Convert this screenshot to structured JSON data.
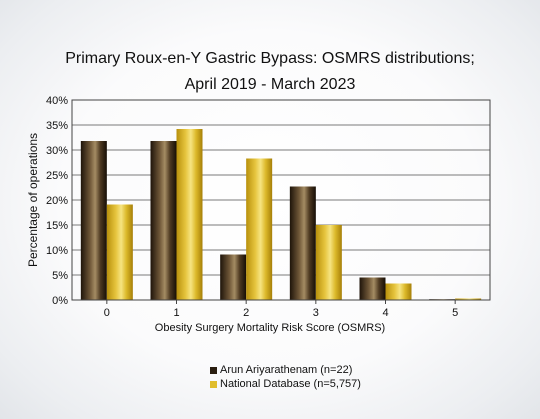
{
  "chart_data": {
    "type": "bar",
    "title": "Primary Roux-en-Y Gastric Bypass: OSMRS distributions;",
    "subtitle": "April 2019 - March 2023",
    "xlabel": "Obesity Surgery Mortality Risk Score (OSMRS)",
    "ylabel": "Percentage of operations",
    "categories": [
      "0",
      "1",
      "2",
      "3",
      "4",
      "5"
    ],
    "ylim": [
      0,
      40
    ],
    "yticks": [
      0,
      5,
      10,
      15,
      20,
      25,
      30,
      35,
      40
    ],
    "ytick_suffix": "%",
    "grid": true,
    "legend_position": "bottom",
    "series": [
      {
        "name": "Arun Ariyarathenam (n=22)",
        "values": [
          31.8,
          31.8,
          9.1,
          22.7,
          4.5,
          0
        ],
        "color": "#4a3520"
      },
      {
        "name": "National Database (n=5,757)",
        "values": [
          19.1,
          34.2,
          28.3,
          15.0,
          3.3,
          0.3
        ],
        "color": "#d8b420"
      }
    ]
  }
}
